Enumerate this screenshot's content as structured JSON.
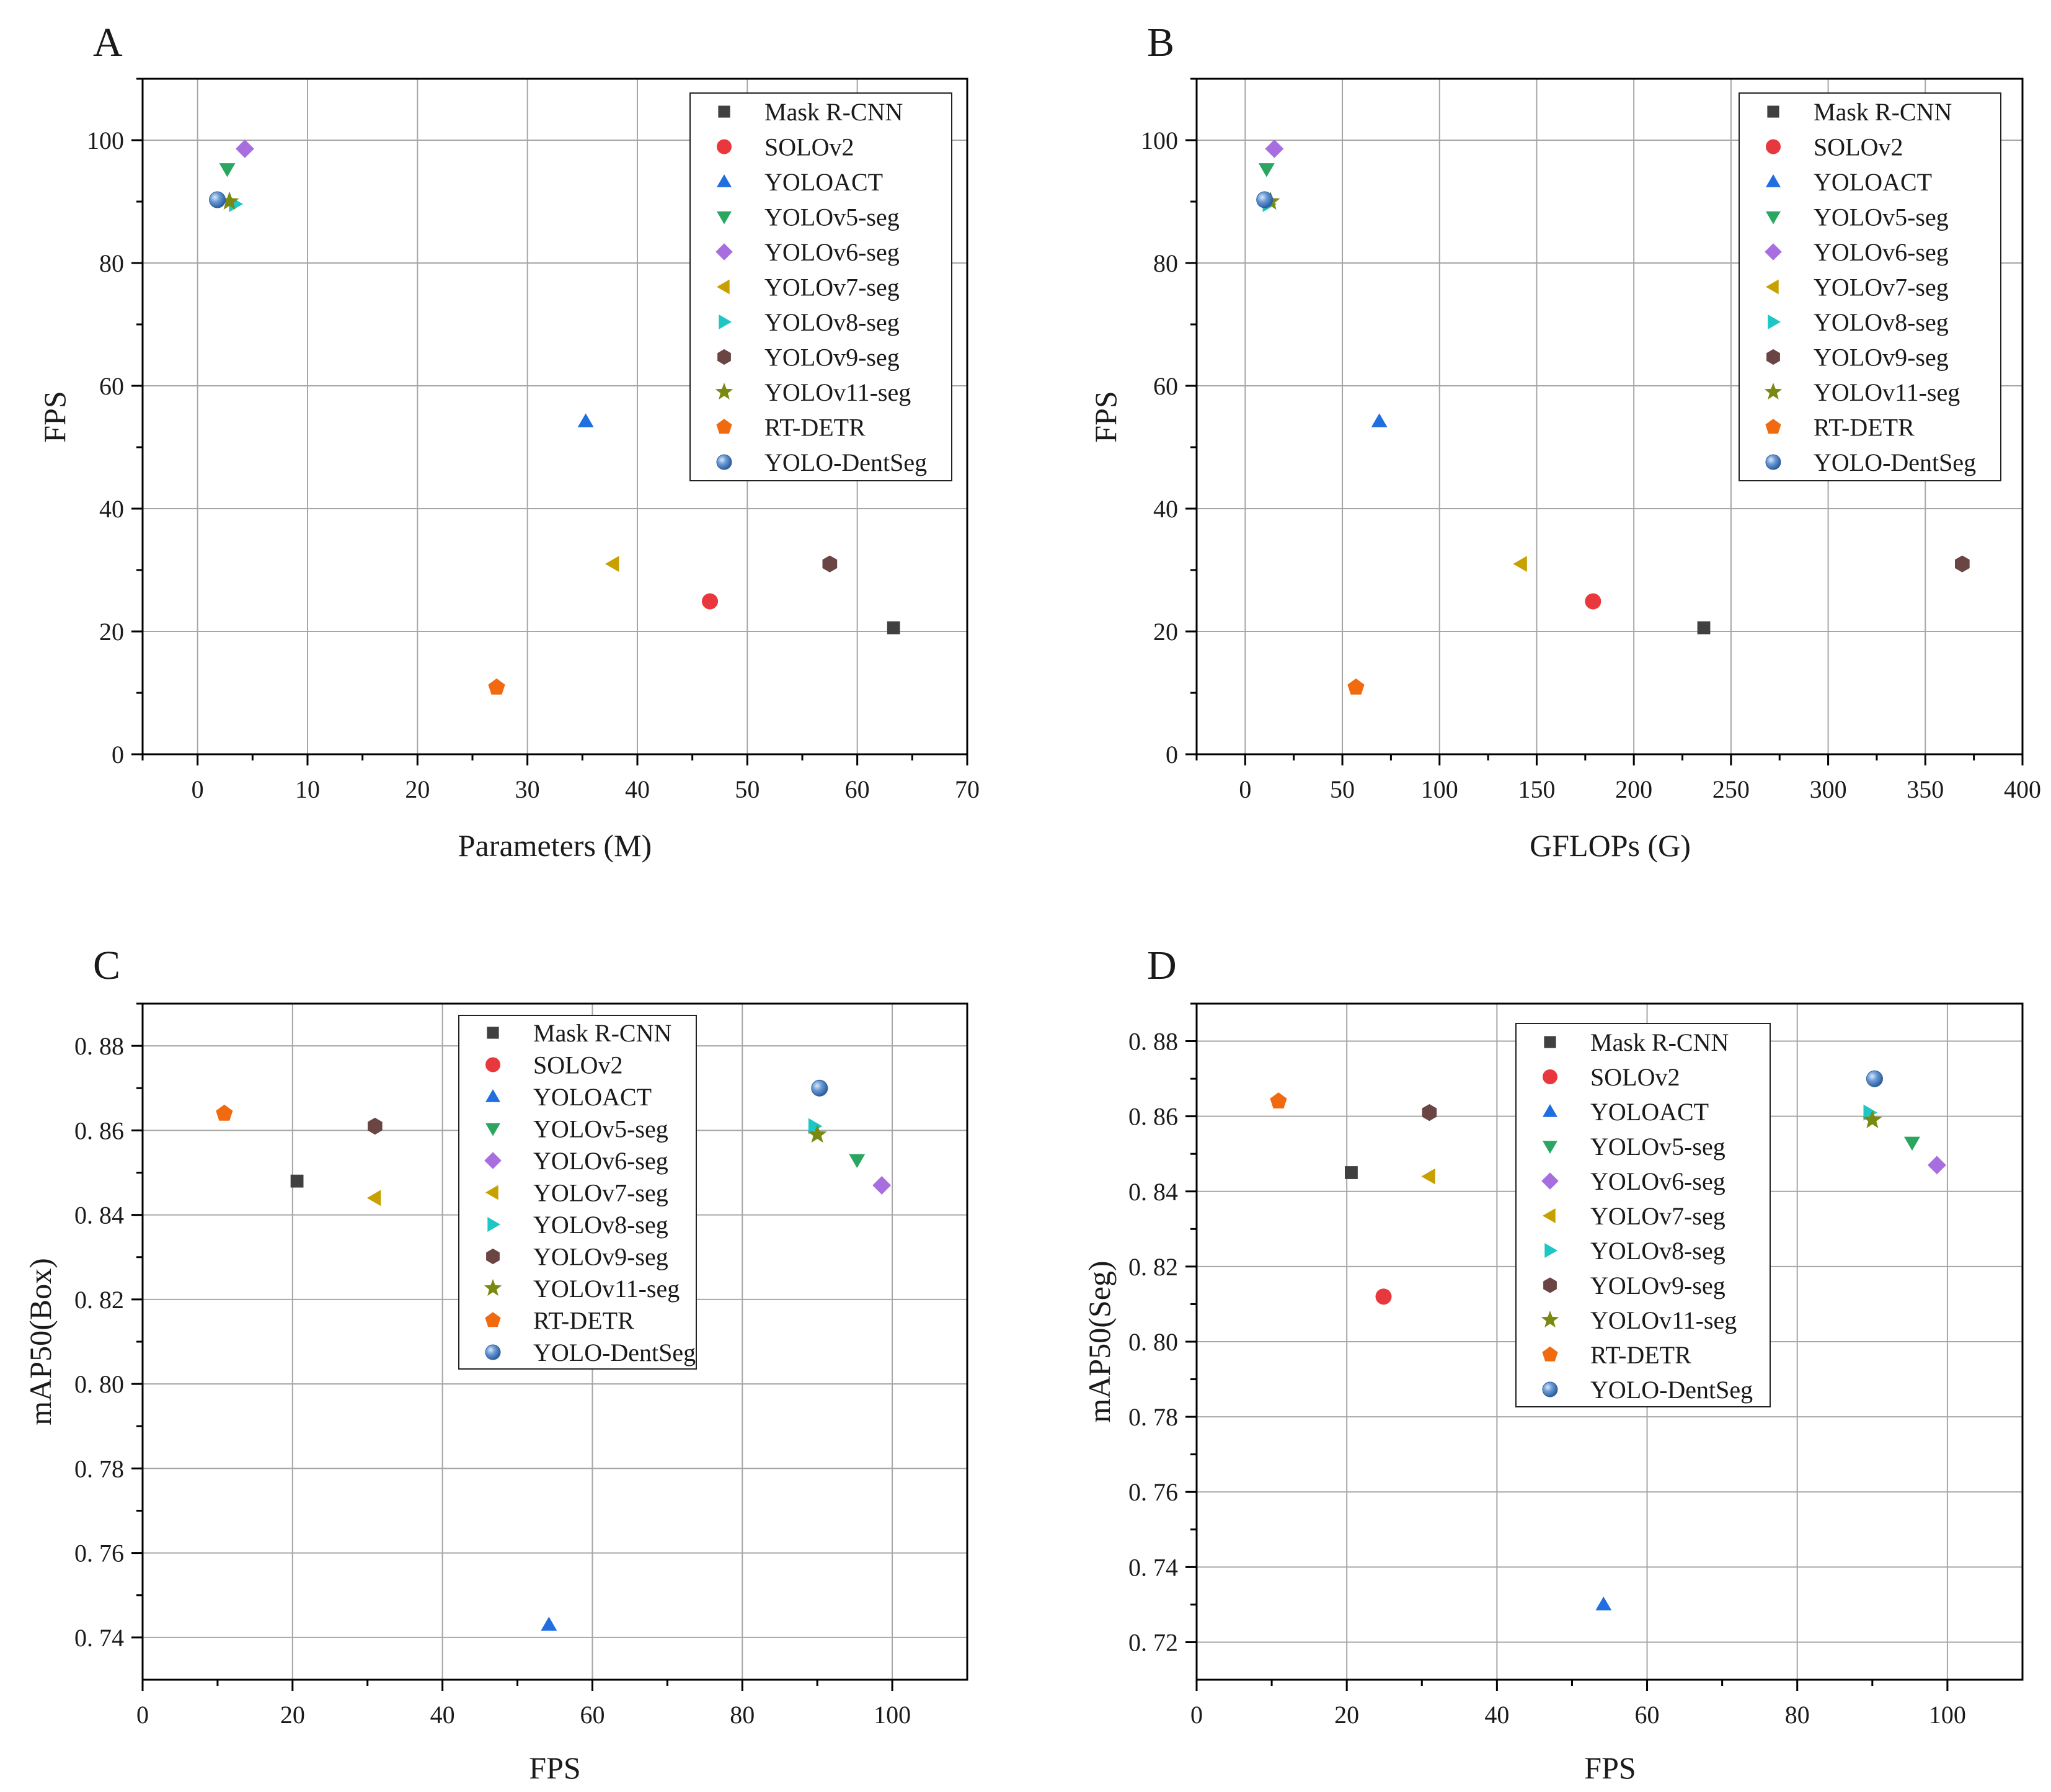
{
  "figure": {
    "legend_entries": [
      "Mask R-CNN",
      "SOLOv2",
      "YOLOACT",
      "YOLOv5-seg",
      "YOLOv6-seg",
      "YOLOv7-seg",
      "YOLOv8-seg",
      "YOLOv9-seg",
      "YOLOv11-seg",
      "RT-DETR",
      "YOLO-DentSeg"
    ],
    "marker_styles": [
      {
        "shape": "square",
        "color": "#404040"
      },
      {
        "shape": "circle",
        "color": "#e8383d"
      },
      {
        "shape": "triangle-up",
        "color": "#1f6fe0"
      },
      {
        "shape": "triangle-down",
        "color": "#2aa660"
      },
      {
        "shape": "diamond",
        "color": "#a86ee0"
      },
      {
        "shape": "triangle-left",
        "color": "#c8a000"
      },
      {
        "shape": "triangle-right",
        "color": "#1ec6c6"
      },
      {
        "shape": "hexagon",
        "color": "#6b4444"
      },
      {
        "shape": "star",
        "color": "#7a8a10"
      },
      {
        "shape": "pentagon",
        "color": "#f26a10"
      },
      {
        "shape": "sphere",
        "color": "#5a8fd0"
      }
    ]
  },
  "chart_data": [
    {
      "type": "scatter",
      "panel_label": "A",
      "xlabel": "Parameters (M)",
      "ylabel": "FPS",
      "xlim": [
        -5,
        70
      ],
      "ylim": [
        0,
        110
      ],
      "xticks": [
        0,
        10,
        20,
        30,
        40,
        50,
        60,
        70
      ],
      "yticks": [
        0,
        20,
        40,
        60,
        80,
        100
      ],
      "xtick_labels": [
        "0",
        "10",
        "20",
        "30",
        "40",
        "50",
        "60",
        "70"
      ],
      "ytick_labels": [
        "0",
        "20",
        "40",
        "60",
        "80",
        "100"
      ],
      "grid": true,
      "legend_position": "top-right",
      "series": [
        {
          "name": "Mask R-CNN",
          "x": 63.3,
          "y": 20.6
        },
        {
          "name": "SOLOv2",
          "x": 46.6,
          "y": 24.9
        },
        {
          "name": "YOLOACT",
          "x": 35.3,
          "y": 54.2
        },
        {
          "name": "YOLOv5-seg",
          "x": 2.7,
          "y": 95.3
        },
        {
          "name": "YOLOv6-seg",
          "x": 4.3,
          "y": 98.6
        },
        {
          "name": "YOLOv7-seg",
          "x": 37.8,
          "y": 31.0
        },
        {
          "name": "YOLOv8-seg",
          "x": 3.4,
          "y": 89.6
        },
        {
          "name": "YOLOv9-seg",
          "x": 57.5,
          "y": 31.0
        },
        {
          "name": "YOLOv11-seg",
          "x": 2.9,
          "y": 90.0
        },
        {
          "name": "RT-DETR",
          "x": 27.2,
          "y": 10.9
        },
        {
          "name": "YOLO-DentSeg",
          "x": 1.8,
          "y": 90.3
        }
      ]
    },
    {
      "type": "scatter",
      "panel_label": "B",
      "xlabel": "GFLOPs (G)",
      "ylabel": "FPS",
      "xlim": [
        -25,
        400
      ],
      "ylim": [
        0,
        110
      ],
      "xticks": [
        0,
        50,
        100,
        150,
        200,
        250,
        300,
        350,
        400
      ],
      "yticks": [
        0,
        20,
        40,
        60,
        80,
        100
      ],
      "xtick_labels": [
        "0",
        "50",
        "100",
        "150",
        "200",
        "250",
        "300",
        "350",
        "400"
      ],
      "ytick_labels": [
        "0",
        "20",
        "40",
        "60",
        "80",
        "100"
      ],
      "grid": true,
      "legend_position": "top-right",
      "series": [
        {
          "name": "Mask R-CNN",
          "x": 236,
          "y": 20.6
        },
        {
          "name": "SOLOv2",
          "x": 179,
          "y": 24.9
        },
        {
          "name": "YOLOACT",
          "x": 69,
          "y": 54.2
        },
        {
          "name": "YOLOv5-seg",
          "x": 11,
          "y": 95.3
        },
        {
          "name": "YOLOv6-seg",
          "x": 15,
          "y": 98.6
        },
        {
          "name": "YOLOv7-seg",
          "x": 142,
          "y": 31.0
        },
        {
          "name": "YOLOv8-seg",
          "x": 12,
          "y": 89.6
        },
        {
          "name": "YOLOv9-seg",
          "x": 369,
          "y": 31.0
        },
        {
          "name": "YOLOv11-seg",
          "x": 13,
          "y": 90.0
        },
        {
          "name": "RT-DETR",
          "x": 57,
          "y": 10.9
        },
        {
          "name": "YOLO-DentSeg",
          "x": 10,
          "y": 90.3
        }
      ]
    },
    {
      "type": "scatter",
      "panel_label": "C",
      "xlabel": "FPS",
      "ylabel": "mAP50(Box)",
      "xlim": [
        0,
        110
      ],
      "ylim": [
        0.73,
        0.89
      ],
      "xticks": [
        0,
        20,
        40,
        60,
        80,
        100
      ],
      "yticks": [
        0.74,
        0.76,
        0.78,
        0.8,
        0.82,
        0.84,
        0.86,
        0.88
      ],
      "xtick_labels": [
        "0",
        "20",
        "40",
        "60",
        "80",
        "100"
      ],
      "ytick_labels": [
        "0. 74",
        "0. 76",
        "0. 78",
        "0. 80",
        "0. 82",
        "0. 84",
        "0. 86",
        "0. 88"
      ],
      "grid": true,
      "legend_position": "top-center",
      "series": [
        {
          "name": "Mask R-CNN",
          "x": 20.6,
          "y": 0.848
        },
        {
          "name": "SOLOv2",
          "x": null,
          "y": null
        },
        {
          "name": "YOLOACT",
          "x": 54.2,
          "y": 0.743
        },
        {
          "name": "YOLOv5-seg",
          "x": 95.3,
          "y": 0.853
        },
        {
          "name": "YOLOv6-seg",
          "x": 98.6,
          "y": 0.847
        },
        {
          "name": "YOLOv7-seg",
          "x": 31.0,
          "y": 0.844
        },
        {
          "name": "YOLOv8-seg",
          "x": 89.6,
          "y": 0.861
        },
        {
          "name": "YOLOv9-seg",
          "x": 31.0,
          "y": 0.861
        },
        {
          "name": "YOLOv11-seg",
          "x": 90.0,
          "y": 0.859
        },
        {
          "name": "RT-DETR",
          "x": 10.9,
          "y": 0.864
        },
        {
          "name": "YOLO-DentSeg",
          "x": 90.3,
          "y": 0.87
        }
      ]
    },
    {
      "type": "scatter",
      "panel_label": "D",
      "xlabel": "FPS",
      "ylabel": "mAP50(Seg)",
      "xlim": [
        0,
        110
      ],
      "ylim": [
        0.71,
        0.89
      ],
      "xticks": [
        0,
        20,
        40,
        60,
        80,
        100
      ],
      "yticks": [
        0.72,
        0.74,
        0.76,
        0.78,
        0.8,
        0.82,
        0.84,
        0.86,
        0.88
      ],
      "xtick_labels": [
        "0",
        "20",
        "40",
        "60",
        "80",
        "100"
      ],
      "ytick_labels": [
        "0. 72",
        "0. 74",
        "0. 76",
        "0. 78",
        "0. 80",
        "0. 82",
        "0. 84",
        "0. 86",
        "0. 88"
      ],
      "grid": true,
      "legend_position": "top-center",
      "series": [
        {
          "name": "Mask R-CNN",
          "x": 20.6,
          "y": 0.845
        },
        {
          "name": "SOLOv2",
          "x": 24.9,
          "y": 0.812
        },
        {
          "name": "YOLOACT",
          "x": 54.2,
          "y": 0.73
        },
        {
          "name": "YOLOv5-seg",
          "x": 95.3,
          "y": 0.853
        },
        {
          "name": "YOLOv6-seg",
          "x": 98.6,
          "y": 0.847
        },
        {
          "name": "YOLOv7-seg",
          "x": 31.0,
          "y": 0.844
        },
        {
          "name": "YOLOv8-seg",
          "x": 89.6,
          "y": 0.861
        },
        {
          "name": "YOLOv9-seg",
          "x": 31.0,
          "y": 0.861
        },
        {
          "name": "YOLOv11-seg",
          "x": 90.0,
          "y": 0.859
        },
        {
          "name": "RT-DETR",
          "x": 10.9,
          "y": 0.864
        },
        {
          "name": "YOLO-DentSeg",
          "x": 90.3,
          "y": 0.87
        }
      ]
    }
  ]
}
